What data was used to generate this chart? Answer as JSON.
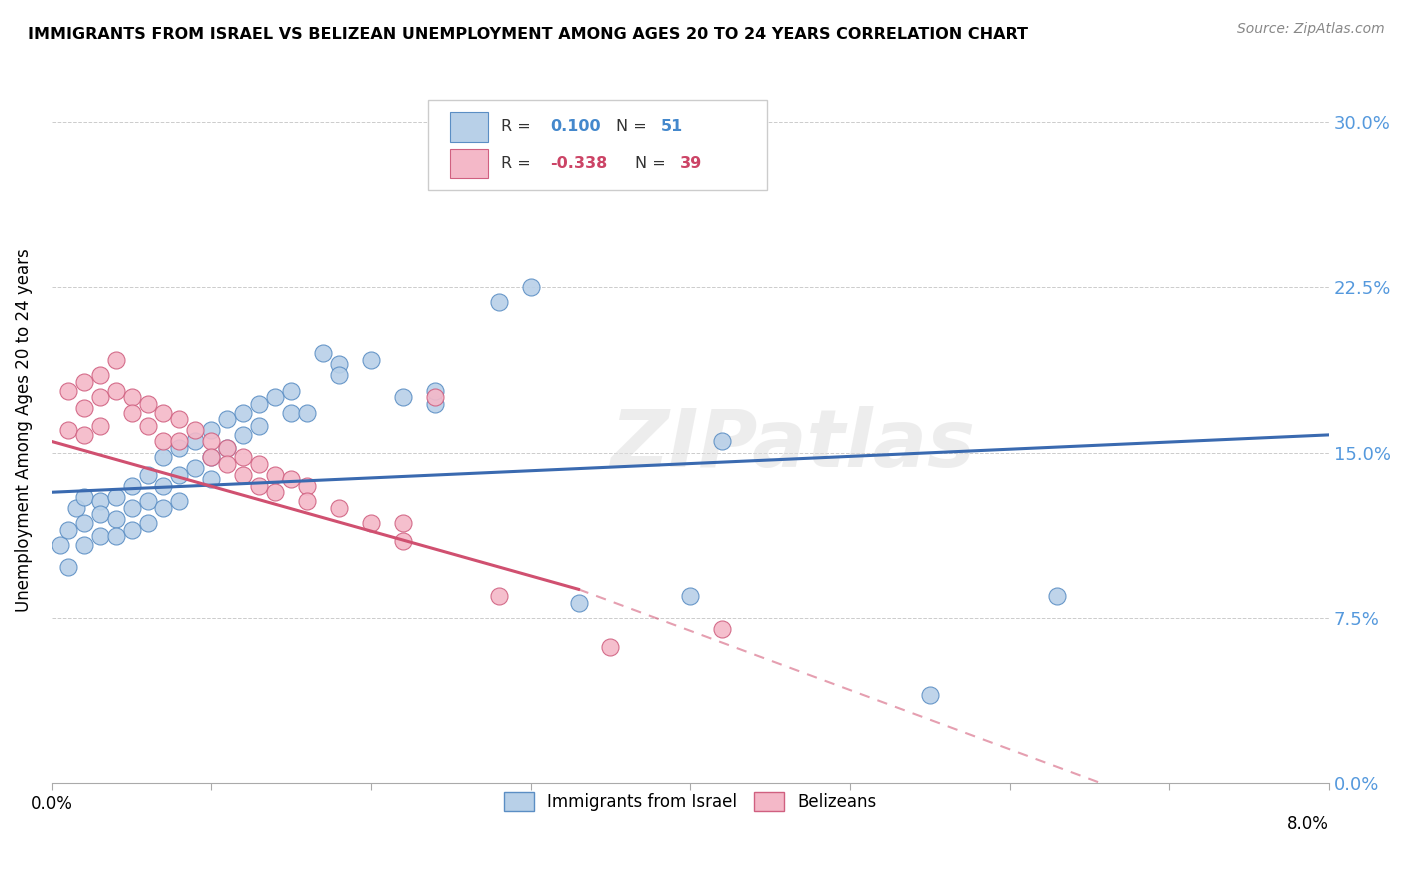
{
  "title": "IMMIGRANTS FROM ISRAEL VS BELIZEAN UNEMPLOYMENT AMONG AGES 20 TO 24 YEARS CORRELATION CHART",
  "source": "Source: ZipAtlas.com",
  "ylabel": "Unemployment Among Ages 20 to 24 years",
  "watermark": "ZIPatlas",
  "blue_fill": "#b8d0e8",
  "blue_edge": "#5b8ec4",
  "pink_fill": "#f4b8c8",
  "pink_edge": "#d06080",
  "trendline_blue": "#3a6ab0",
  "trendline_pink": "#d05070",
  "xlim": [
    0.0,
    0.08
  ],
  "ylim": [
    0.0,
    0.32
  ],
  "x_ticks": [
    0.0,
    0.01,
    0.02,
    0.03,
    0.04,
    0.05,
    0.06,
    0.07,
    0.08
  ],
  "y_ticks": [
    0.0,
    0.075,
    0.15,
    0.225,
    0.3
  ],
  "blue_trend": [
    0.0,
    0.08,
    0.132,
    0.158
  ],
  "pink_trend_solid": [
    0.0,
    0.033,
    0.155,
    0.088
  ],
  "pink_trend_dash": [
    0.033,
    0.09,
    0.088,
    -0.065
  ],
  "israel_dots": [
    [
      0.0005,
      0.108
    ],
    [
      0.001,
      0.098
    ],
    [
      0.001,
      0.115
    ],
    [
      0.0015,
      0.125
    ],
    [
      0.002,
      0.13
    ],
    [
      0.002,
      0.118
    ],
    [
      0.002,
      0.108
    ],
    [
      0.003,
      0.128
    ],
    [
      0.003,
      0.122
    ],
    [
      0.003,
      0.112
    ],
    [
      0.004,
      0.13
    ],
    [
      0.004,
      0.12
    ],
    [
      0.004,
      0.112
    ],
    [
      0.005,
      0.135
    ],
    [
      0.005,
      0.125
    ],
    [
      0.005,
      0.115
    ],
    [
      0.006,
      0.14
    ],
    [
      0.006,
      0.128
    ],
    [
      0.006,
      0.118
    ],
    [
      0.007,
      0.148
    ],
    [
      0.007,
      0.135
    ],
    [
      0.007,
      0.125
    ],
    [
      0.008,
      0.152
    ],
    [
      0.008,
      0.14
    ],
    [
      0.008,
      0.128
    ],
    [
      0.009,
      0.155
    ],
    [
      0.009,
      0.143
    ],
    [
      0.01,
      0.16
    ],
    [
      0.01,
      0.148
    ],
    [
      0.01,
      0.138
    ],
    [
      0.011,
      0.165
    ],
    [
      0.011,
      0.152
    ],
    [
      0.012,
      0.168
    ],
    [
      0.012,
      0.158
    ],
    [
      0.013,
      0.172
    ],
    [
      0.013,
      0.162
    ],
    [
      0.014,
      0.175
    ],
    [
      0.015,
      0.178
    ],
    [
      0.015,
      0.168
    ],
    [
      0.016,
      0.168
    ],
    [
      0.017,
      0.195
    ],
    [
      0.018,
      0.19
    ],
    [
      0.018,
      0.185
    ],
    [
      0.02,
      0.192
    ],
    [
      0.022,
      0.175
    ],
    [
      0.024,
      0.172
    ],
    [
      0.024,
      0.178
    ],
    [
      0.028,
      0.218
    ],
    [
      0.03,
      0.225
    ],
    [
      0.033,
      0.082
    ],
    [
      0.04,
      0.085
    ],
    [
      0.042,
      0.155
    ],
    [
      0.055,
      0.04
    ],
    [
      0.063,
      0.085
    ]
  ],
  "belizean_dots": [
    [
      0.001,
      0.178
    ],
    [
      0.001,
      0.16
    ],
    [
      0.002,
      0.182
    ],
    [
      0.002,
      0.17
    ],
    [
      0.002,
      0.158
    ],
    [
      0.003,
      0.185
    ],
    [
      0.003,
      0.175
    ],
    [
      0.003,
      0.162
    ],
    [
      0.004,
      0.192
    ],
    [
      0.004,
      0.178
    ],
    [
      0.005,
      0.175
    ],
    [
      0.005,
      0.168
    ],
    [
      0.006,
      0.172
    ],
    [
      0.006,
      0.162
    ],
    [
      0.007,
      0.168
    ],
    [
      0.007,
      0.155
    ],
    [
      0.008,
      0.165
    ],
    [
      0.008,
      0.155
    ],
    [
      0.009,
      0.16
    ],
    [
      0.01,
      0.155
    ],
    [
      0.01,
      0.148
    ],
    [
      0.011,
      0.152
    ],
    [
      0.011,
      0.145
    ],
    [
      0.012,
      0.148
    ],
    [
      0.012,
      0.14
    ],
    [
      0.013,
      0.145
    ],
    [
      0.013,
      0.135
    ],
    [
      0.014,
      0.14
    ],
    [
      0.014,
      0.132
    ],
    [
      0.015,
      0.138
    ],
    [
      0.016,
      0.135
    ],
    [
      0.016,
      0.128
    ],
    [
      0.018,
      0.125
    ],
    [
      0.02,
      0.118
    ],
    [
      0.022,
      0.11
    ],
    [
      0.022,
      0.118
    ],
    [
      0.024,
      0.175
    ],
    [
      0.028,
      0.085
    ],
    [
      0.035,
      0.062
    ],
    [
      0.042,
      0.07
    ]
  ]
}
